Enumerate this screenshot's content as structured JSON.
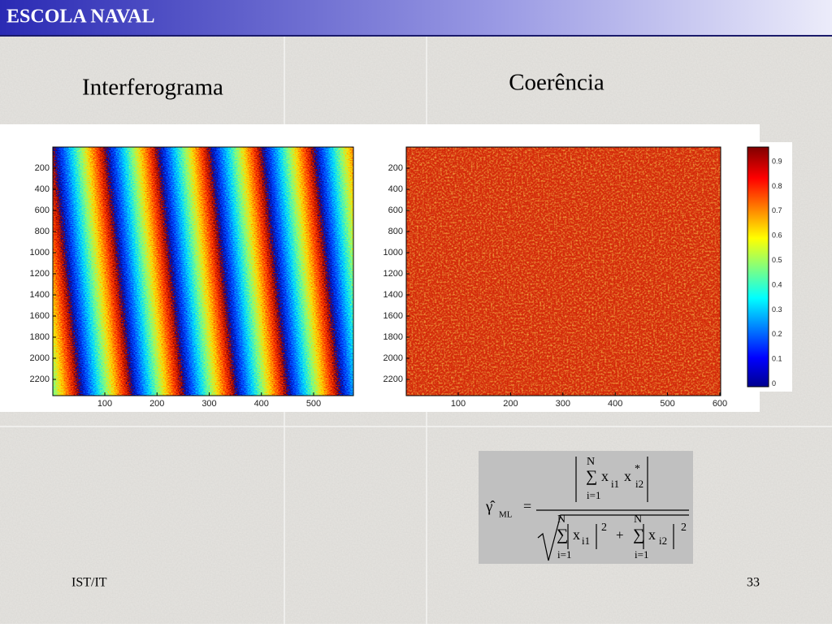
{
  "header": {
    "title": "ESCOLA NAVAL"
  },
  "panels": [
    {
      "title": "Interferograma",
      "yticks": [
        200,
        400,
        600,
        800,
        1000,
        1200,
        1400,
        1600,
        1800,
        2000,
        2200
      ],
      "xticks": [
        100,
        200,
        300,
        400,
        500
      ]
    },
    {
      "title": "Coerência",
      "yticks": [
        200,
        400,
        600,
        800,
        1000,
        1200,
        1400,
        1600,
        1800,
        2000,
        2200
      ],
      "xticks": [
        100,
        200,
        300,
        400,
        500,
        600
      ]
    }
  ],
  "colorbar": {
    "ticks": [
      0.9,
      0.8,
      0.7,
      0.6,
      0.5,
      0.4,
      0.3,
      0.2,
      0.1,
      0
    ]
  },
  "formula": {
    "parts": [
      "N",
      "∑",
      "i=1",
      "x",
      "i1",
      "x",
      "*",
      "i2",
      "γ̂",
      "ML",
      "=",
      "N",
      "∑",
      "i=1",
      "x",
      "i1",
      "2",
      "+",
      "N",
      "∑",
      "i=1",
      "x",
      "i2",
      "2"
    ]
  },
  "footer": {
    "left": "IST/IT",
    "page": "33"
  }
}
